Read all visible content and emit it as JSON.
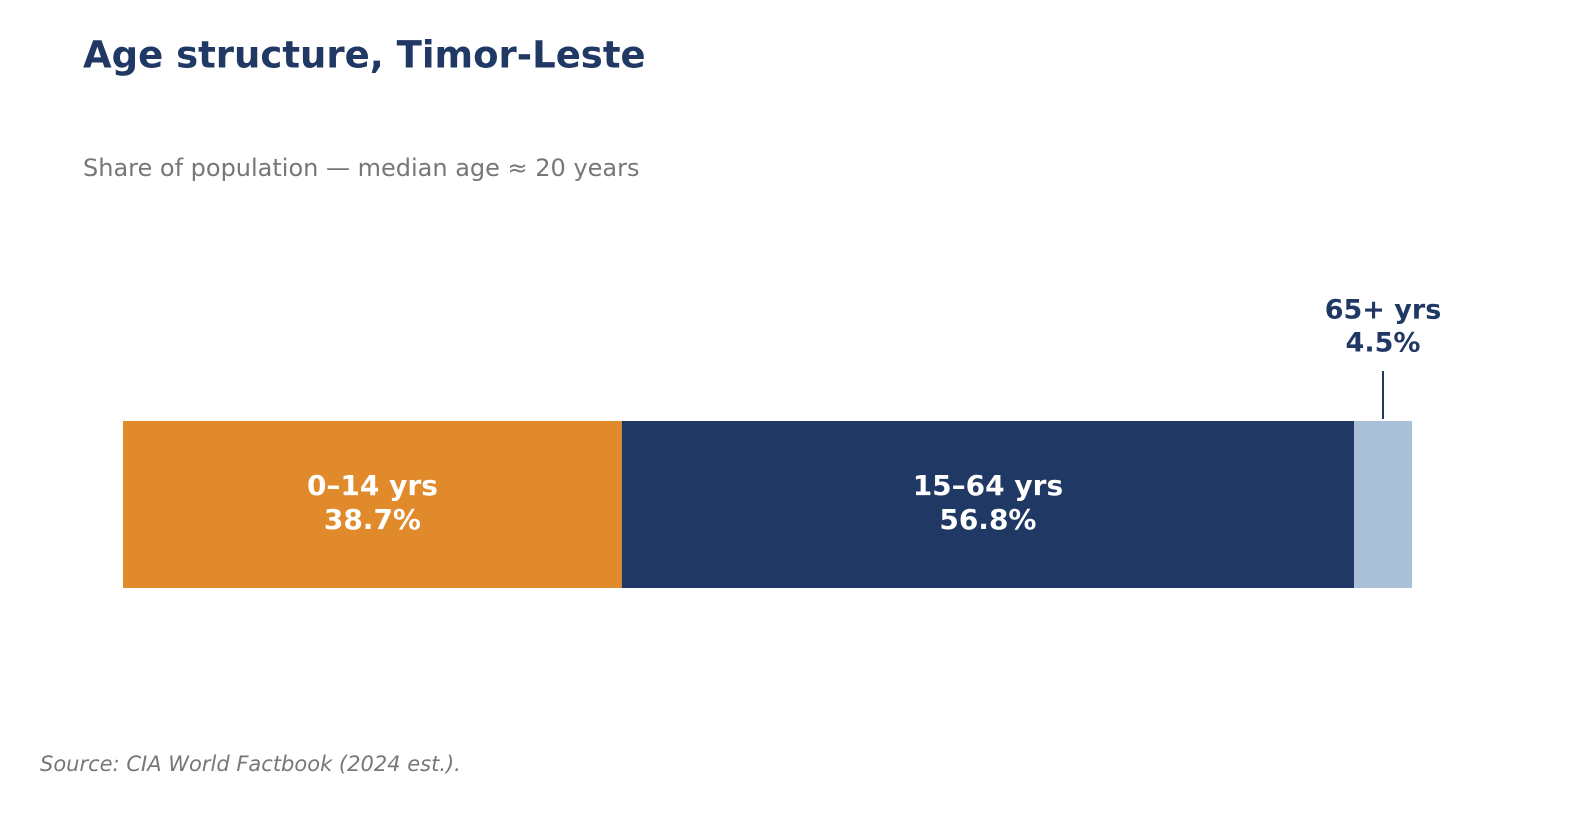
{
  "chart_data": {
    "type": "stacked-bar",
    "title": "Age structure, Timor-Leste",
    "subtitle": "Share of population — median age ≈ 20 years",
    "source": "Source: CIA World Factbook (2024 est.).",
    "series": [
      {
        "name": "0–14 yrs",
        "color": "#e08a2c",
        "values": [
          38.7
        ],
        "value_labels": [
          "38.7%"
        ]
      },
      {
        "name": "15–64 yrs",
        "color": "#203864",
        "values": [
          56.8
        ],
        "value_labels": [
          "56.8%"
        ]
      },
      {
        "name": "65+ yrs",
        "color": "#aac0d8",
        "values": [
          4.5
        ],
        "value_labels": [
          "4.5%"
        ]
      }
    ]
  }
}
